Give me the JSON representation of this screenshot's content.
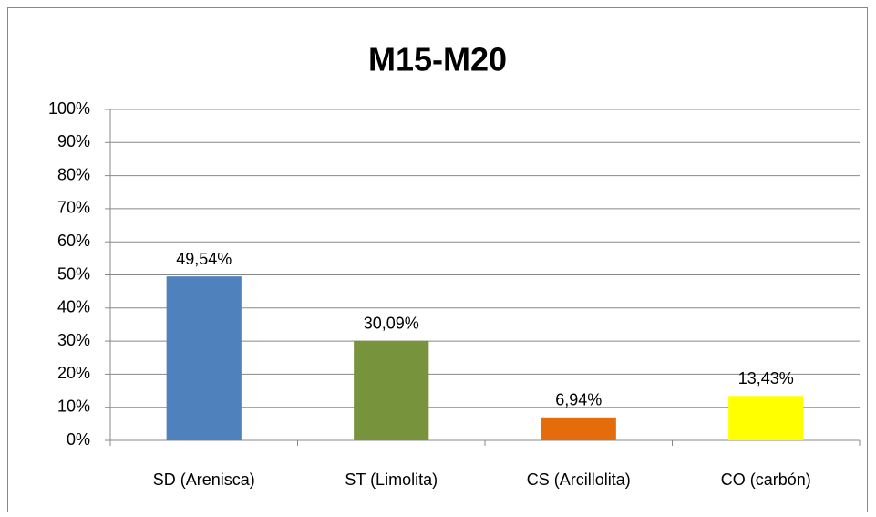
{
  "chart_data": {
    "type": "bar",
    "title": "M15-M20",
    "categories": [
      "SD (Arenisca)",
      "ST (Limolita)",
      "CS (Arcillolita)",
      "CO (carbón)"
    ],
    "values": [
      49.54,
      30.09,
      6.94,
      13.43
    ],
    "value_labels": [
      "49,54%",
      "30,09%",
      "6,94%",
      "13,43%"
    ],
    "colors": [
      "#4f81bd",
      "#77933c",
      "#e46c0a",
      "#ffff00"
    ],
    "ylim": [
      0,
      100
    ],
    "yticks": [
      {
        "value": 0,
        "label": "0%"
      },
      {
        "value": 10,
        "label": "10%"
      },
      {
        "value": 20,
        "label": "20%"
      },
      {
        "value": 30,
        "label": "30%"
      },
      {
        "value": 40,
        "label": "40%"
      },
      {
        "value": 50,
        "label": "50%"
      },
      {
        "value": 60,
        "label": "60%"
      },
      {
        "value": 70,
        "label": "70%"
      },
      {
        "value": 80,
        "label": "80%"
      },
      {
        "value": 90,
        "label": "90%"
      },
      {
        "value": 100,
        "label": "100%"
      }
    ],
    "grid": true
  }
}
